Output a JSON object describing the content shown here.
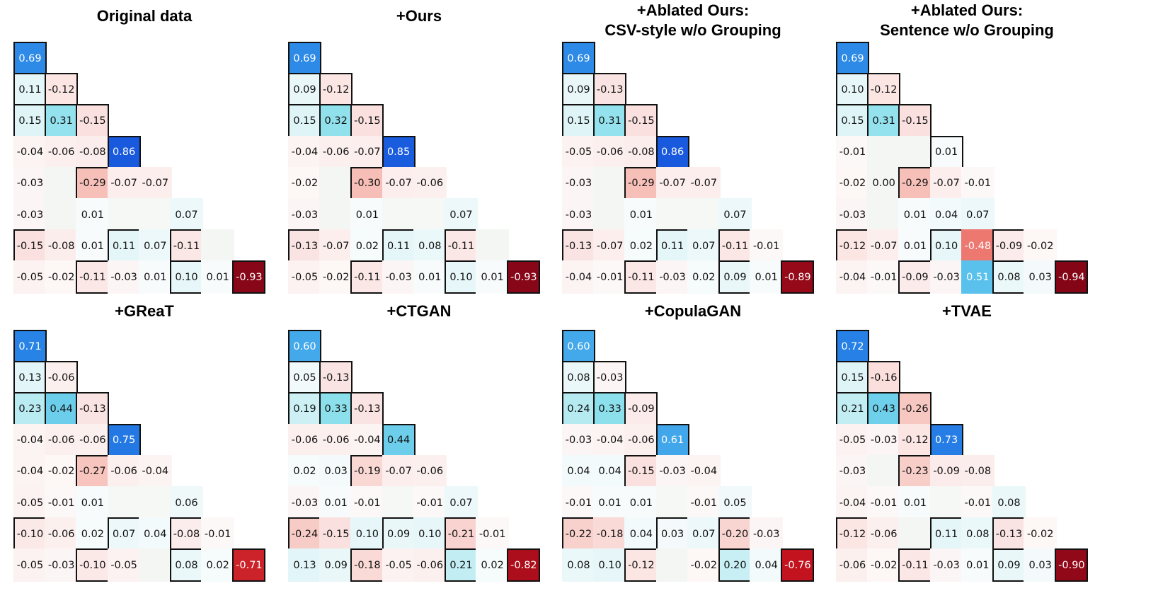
{
  "chart_data": [
    {
      "type": "heatmap",
      "title": "Original data",
      "title_line2": "",
      "rows": [
        [
          0.69
        ],
        [
          0.11,
          -0.12
        ],
        [
          0.15,
          0.31,
          -0.15
        ],
        [
          -0.04,
          -0.06,
          -0.08,
          0.86
        ],
        [
          -0.03,
          null,
          -0.29,
          -0.07,
          -0.07
        ],
        [
          -0.03,
          null,
          0.01,
          null,
          null,
          0.07
        ],
        [
          -0.15,
          -0.08,
          0.01,
          0.11,
          0.07,
          -0.11,
          null
        ],
        [
          -0.05,
          -0.02,
          -0.11,
          -0.03,
          0.01,
          0.1,
          0.01,
          -0.93
        ]
      ],
      "outlined": [
        [
          0,
          0
        ],
        [
          1,
          0
        ],
        [
          1,
          1
        ],
        [
          2,
          0
        ],
        [
          2,
          1
        ],
        [
          2,
          2
        ],
        [
          3,
          3
        ],
        [
          4,
          2
        ],
        [
          6,
          0
        ],
        [
          6,
          3
        ],
        [
          6,
          5
        ],
        [
          7,
          2
        ],
        [
          7,
          5
        ],
        [
          7,
          7
        ]
      ]
    },
    {
      "type": "heatmap",
      "title": "+Ours",
      "title_line2": "",
      "rows": [
        [
          0.69
        ],
        [
          0.09,
          -0.12
        ],
        [
          0.15,
          0.32,
          -0.15
        ],
        [
          -0.04,
          -0.06,
          -0.07,
          0.85
        ],
        [
          -0.02,
          null,
          -0.3,
          -0.07,
          -0.06
        ],
        [
          -0.03,
          null,
          0.01,
          null,
          null,
          0.07
        ],
        [
          -0.13,
          -0.07,
          0.02,
          0.11,
          0.08,
          -0.11,
          null
        ],
        [
          -0.05,
          -0.02,
          -0.11,
          -0.03,
          0.01,
          0.1,
          0.01,
          -0.93
        ]
      ],
      "outlined": [
        [
          0,
          0
        ],
        [
          1,
          0
        ],
        [
          1,
          1
        ],
        [
          2,
          0
        ],
        [
          2,
          1
        ],
        [
          2,
          2
        ],
        [
          3,
          3
        ],
        [
          4,
          2
        ],
        [
          6,
          0
        ],
        [
          6,
          3
        ],
        [
          6,
          5
        ],
        [
          7,
          2
        ],
        [
          7,
          5
        ],
        [
          7,
          7
        ]
      ]
    },
    {
      "type": "heatmap",
      "title": "+Ablated Ours:",
      "title_line2": "CSV-style w/o Grouping",
      "rows": [
        [
          0.69
        ],
        [
          0.09,
          -0.13
        ],
        [
          0.15,
          0.31,
          -0.15
        ],
        [
          -0.05,
          -0.06,
          -0.08,
          0.86
        ],
        [
          -0.03,
          null,
          -0.29,
          -0.07,
          -0.07
        ],
        [
          -0.03,
          null,
          0.01,
          null,
          null,
          0.07
        ],
        [
          -0.13,
          -0.07,
          0.02,
          0.11,
          0.07,
          -0.11,
          -0.01
        ],
        [
          -0.04,
          -0.01,
          -0.11,
          -0.03,
          0.02,
          0.09,
          0.01,
          -0.89
        ]
      ],
      "outlined": [
        [
          0,
          0
        ],
        [
          1,
          0
        ],
        [
          1,
          1
        ],
        [
          2,
          0
        ],
        [
          2,
          1
        ],
        [
          2,
          2
        ],
        [
          3,
          3
        ],
        [
          4,
          2
        ],
        [
          6,
          0
        ],
        [
          6,
          3
        ],
        [
          6,
          5
        ],
        [
          7,
          2
        ],
        [
          7,
          5
        ],
        [
          7,
          7
        ]
      ]
    },
    {
      "type": "heatmap",
      "title": "+Ablated Ours:",
      "title_line2": "Sentence w/o Grouping",
      "rows": [
        [
          0.69
        ],
        [
          0.1,
          -0.12
        ],
        [
          0.15,
          0.31,
          -0.15
        ],
        [
          -0.01,
          null,
          null,
          0.01
        ],
        [
          -0.02,
          0.0,
          -0.29,
          -0.07,
          -0.01
        ],
        [
          -0.03,
          null,
          0.01,
          0.04,
          0.07
        ],
        [
          -0.12,
          -0.07,
          0.01,
          0.1,
          -0.48,
          -0.09,
          -0.02
        ],
        [
          -0.04,
          -0.01,
          -0.09,
          -0.03,
          0.51,
          0.08,
          0.03,
          -0.94
        ]
      ],
      "outlined": [
        [
          0,
          0
        ],
        [
          1,
          0
        ],
        [
          1,
          1
        ],
        [
          2,
          0
        ],
        [
          2,
          1
        ],
        [
          2,
          2
        ],
        [
          3,
          3
        ],
        [
          4,
          2
        ],
        [
          6,
          0
        ],
        [
          6,
          3
        ],
        [
          6,
          5
        ],
        [
          7,
          2
        ],
        [
          7,
          5
        ],
        [
          7,
          7
        ]
      ]
    },
    {
      "type": "heatmap",
      "title": "+GReaT",
      "title_line2": "",
      "rows": [
        [
          0.71
        ],
        [
          0.13,
          -0.06
        ],
        [
          0.23,
          0.44,
          -0.13
        ],
        [
          -0.04,
          -0.06,
          -0.06,
          0.75
        ],
        [
          -0.04,
          -0.02,
          -0.27,
          -0.06,
          -0.04
        ],
        [
          -0.05,
          -0.01,
          0.01,
          null,
          null,
          0.06
        ],
        [
          -0.1,
          -0.06,
          0.02,
          0.07,
          0.04,
          -0.08,
          -0.01
        ],
        [
          -0.05,
          -0.03,
          -0.1,
          -0.05,
          null,
          0.08,
          0.02,
          -0.71
        ]
      ],
      "outlined": [
        [
          0,
          0
        ],
        [
          1,
          0
        ],
        [
          1,
          1
        ],
        [
          2,
          0
        ],
        [
          2,
          1
        ],
        [
          2,
          2
        ],
        [
          3,
          3
        ],
        [
          4,
          2
        ],
        [
          6,
          0
        ],
        [
          6,
          3
        ],
        [
          6,
          5
        ],
        [
          7,
          2
        ],
        [
          7,
          5
        ],
        [
          7,
          7
        ]
      ]
    },
    {
      "type": "heatmap",
      "title": "+CTGAN",
      "title_line2": "",
      "rows": [
        [
          0.6
        ],
        [
          0.05,
          -0.13
        ],
        [
          0.19,
          0.33,
          -0.13
        ],
        [
          -0.06,
          -0.06,
          -0.04,
          0.44
        ],
        [
          0.02,
          0.03,
          -0.19,
          -0.07,
          -0.06
        ],
        [
          -0.03,
          0.01,
          -0.01,
          null,
          -0.01,
          0.07
        ],
        [
          -0.24,
          -0.15,
          0.1,
          0.09,
          0.1,
          -0.21,
          -0.01
        ],
        [
          0.13,
          0.09,
          -0.18,
          -0.05,
          -0.06,
          0.21,
          0.02,
          -0.82
        ]
      ],
      "outlined": [
        [
          0,
          0
        ],
        [
          1,
          0
        ],
        [
          1,
          1
        ],
        [
          2,
          0
        ],
        [
          2,
          1
        ],
        [
          2,
          2
        ],
        [
          3,
          3
        ],
        [
          4,
          2
        ],
        [
          6,
          0
        ],
        [
          6,
          3
        ],
        [
          6,
          5
        ],
        [
          7,
          2
        ],
        [
          7,
          5
        ],
        [
          7,
          7
        ]
      ]
    },
    {
      "type": "heatmap",
      "title": "+CopulaGAN",
      "title_line2": "",
      "rows": [
        [
          0.6
        ],
        [
          0.08,
          -0.03
        ],
        [
          0.24,
          0.33,
          -0.09
        ],
        [
          -0.03,
          -0.04,
          -0.06,
          0.61
        ],
        [
          0.04,
          0.04,
          -0.15,
          -0.03,
          -0.04
        ],
        [
          -0.01,
          0.01,
          0.01,
          null,
          -0.01,
          0.05
        ],
        [
          -0.22,
          -0.18,
          0.04,
          0.03,
          0.07,
          -0.2,
          -0.03
        ],
        [
          0.08,
          0.1,
          -0.12,
          null,
          -0.02,
          0.2,
          0.04,
          -0.76
        ]
      ],
      "outlined": [
        [
          0,
          0
        ],
        [
          1,
          0
        ],
        [
          1,
          1
        ],
        [
          2,
          0
        ],
        [
          2,
          1
        ],
        [
          2,
          2
        ],
        [
          3,
          3
        ],
        [
          4,
          2
        ],
        [
          6,
          0
        ],
        [
          6,
          3
        ],
        [
          6,
          5
        ],
        [
          7,
          2
        ],
        [
          7,
          5
        ],
        [
          7,
          7
        ]
      ]
    },
    {
      "type": "heatmap",
      "title": "+TVAE",
      "title_line2": "",
      "rows": [
        [
          0.72
        ],
        [
          0.15,
          -0.16
        ],
        [
          0.21,
          0.43,
          -0.26
        ],
        [
          -0.05,
          -0.03,
          -0.12,
          0.73
        ],
        [
          -0.03,
          null,
          -0.23,
          -0.09,
          -0.08
        ],
        [
          -0.04,
          -0.01,
          0.01,
          null,
          -0.01,
          0.08
        ],
        [
          -0.12,
          -0.06,
          null,
          0.11,
          0.08,
          -0.13,
          -0.02
        ],
        [
          -0.06,
          -0.02,
          -0.11,
          -0.03,
          0.01,
          0.09,
          0.03,
          -0.9
        ]
      ],
      "outlined": [
        [
          0,
          0
        ],
        [
          1,
          0
        ],
        [
          1,
          1
        ],
        [
          2,
          0
        ],
        [
          2,
          1
        ],
        [
          2,
          2
        ],
        [
          3,
          3
        ],
        [
          4,
          2
        ],
        [
          6,
          0
        ],
        [
          6,
          3
        ],
        [
          6,
          5
        ],
        [
          7,
          2
        ],
        [
          7,
          5
        ],
        [
          7,
          7
        ]
      ]
    }
  ]
}
